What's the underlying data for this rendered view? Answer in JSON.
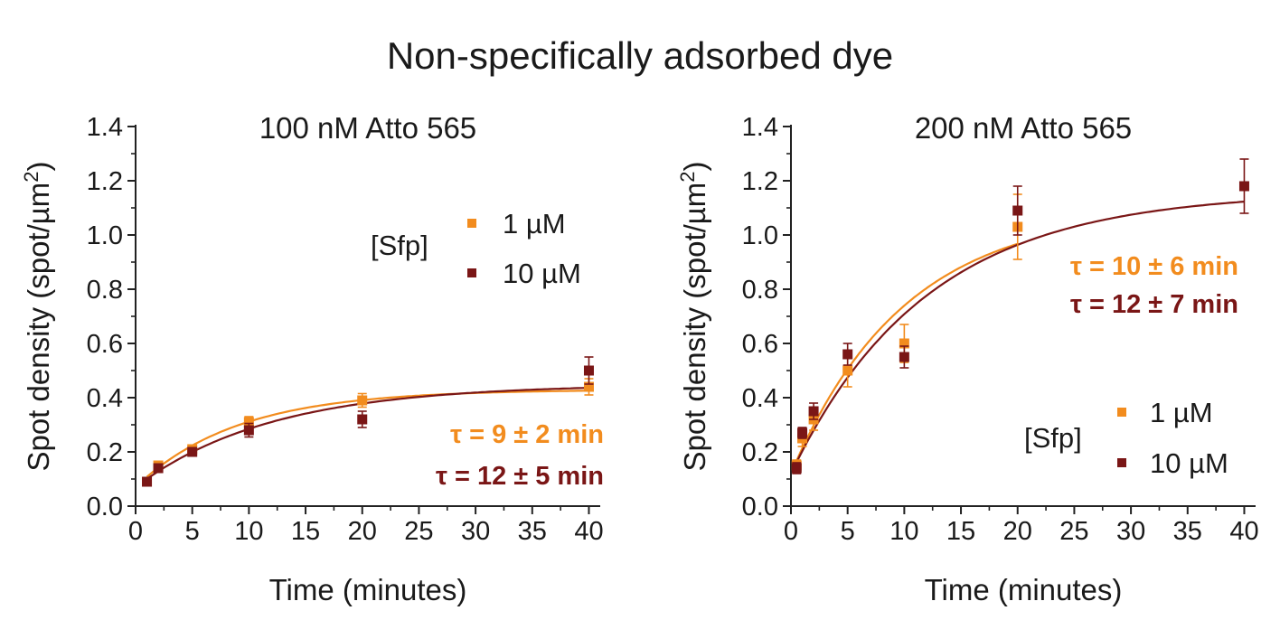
{
  "figure": {
    "title": "Non-specifically adsorbed dye"
  },
  "colors": {
    "series_1uM": "#F28C1E",
    "series_10uM": "#7A1616",
    "axis": "#222222"
  },
  "chart_data": [
    {
      "type": "scatter",
      "title": "100 nM Atto 565",
      "xlabel": "Time (minutes)",
      "ylabel": "Spot density (spot/µm²)",
      "ylabel_main": "Spot density (spot/µm",
      "ylabel_sup": "2",
      "ylabel_close": ")",
      "xlim": [
        0,
        41
      ],
      "ylim": [
        0,
        1.4
      ],
      "xticks": [
        0,
        5,
        10,
        15,
        20,
        25,
        30,
        35,
        40
      ],
      "yticks": [
        "0.0",
        "0.2",
        "0.4",
        "0.6",
        "0.8",
        "1.0",
        "1.2",
        "1.4"
      ],
      "legend": {
        "title": "[Sfp]",
        "entries": [
          "1 µM",
          "10 µM"
        ],
        "position": "upper-middle"
      },
      "series": [
        {
          "name": "1 µM",
          "color": "#F28C1E",
          "x": [
            1,
            2,
            5,
            10,
            20,
            40
          ],
          "y": [
            0.09,
            0.15,
            0.21,
            0.31,
            0.39,
            0.44
          ],
          "err": [
            0.01,
            0.015,
            0.015,
            0.02,
            0.025,
            0.03
          ],
          "fit": {
            "y0": 0.07,
            "A": 0.36,
            "tau": 9
          },
          "annotation": "τ = 9 ± 2 min"
        },
        {
          "name": "10 µM",
          "color": "#7A1616",
          "x": [
            1,
            2,
            5,
            10,
            20,
            40
          ],
          "y": [
            0.09,
            0.14,
            0.2,
            0.28,
            0.32,
            0.5
          ],
          "err": [
            0.01,
            0.015,
            0.015,
            0.025,
            0.03,
            0.05
          ],
          "fit": {
            "y0": 0.07,
            "A": 0.38,
            "tau": 12
          },
          "annotation": "τ = 12 ± 5 min"
        }
      ]
    },
    {
      "type": "scatter",
      "title": "200 nM Atto 565",
      "xlabel": "Time (minutes)",
      "ylabel": "Spot density (spot/µm²)",
      "ylabel_main": "Spot density (spot/µm",
      "ylabel_sup": "2",
      "ylabel_close": ")",
      "xlim": [
        0,
        41
      ],
      "ylim": [
        0,
        1.4
      ],
      "xticks": [
        0,
        5,
        10,
        15,
        20,
        25,
        30,
        35,
        40
      ],
      "yticks": [
        "0.0",
        "0.2",
        "0.4",
        "0.6",
        "0.8",
        "1.0",
        "1.2",
        "1.4"
      ],
      "legend": {
        "title": "[Sfp]",
        "entries": [
          "1 µM",
          "10 µM"
        ],
        "position": "lower-right"
      },
      "series": [
        {
          "name": "1 µM",
          "color": "#F28C1E",
          "x": [
            0.5,
            1,
            2,
            5,
            10,
            20
          ],
          "y": [
            0.15,
            0.25,
            0.32,
            0.5,
            0.6,
            1.03
          ],
          "err": [
            0.02,
            0.03,
            0.04,
            0.06,
            0.07,
            0.12
          ],
          "fit": {
            "y0": 0.12,
            "A": 0.98,
            "tau": 10,
            "xmax": 20
          },
          "annotation": "τ = 10 ± 6 min"
        },
        {
          "name": "10 µM",
          "color": "#7A1616",
          "x": [
            0.5,
            1,
            2,
            5,
            10,
            20,
            40
          ],
          "y": [
            0.14,
            0.27,
            0.35,
            0.56,
            0.55,
            1.09,
            1.18
          ],
          "err": [
            0.02,
            0.02,
            0.03,
            0.04,
            0.04,
            0.09,
            0.1
          ],
          "fit": {
            "y0": 0.12,
            "A": 1.04,
            "tau": 12
          },
          "annotation": "τ = 12 ± 7 min"
        }
      ]
    }
  ]
}
